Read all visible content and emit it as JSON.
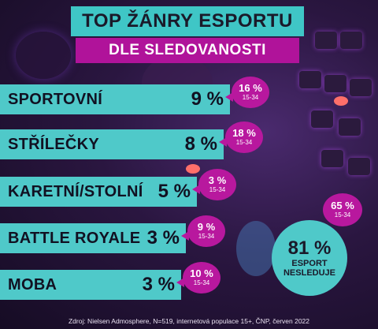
{
  "header": {
    "title": "TOP ŽÁNRY ESPORTU",
    "subtitle": "DLE SLEDOVANOSTI"
  },
  "chart_data": {
    "type": "bar",
    "title": "TOP ŽÁNRY ESPORTU",
    "subtitle": "DLE SLEDOVANOSTI",
    "categories": [
      "SPORTOVNÍ",
      "STŘÍLEČKY",
      "KARETNÍ/STOLNÍ",
      "BATTLE ROYALE",
      "MOBA"
    ],
    "series": [
      {
        "values": [
          9,
          8,
          5,
          3,
          3
        ]
      },
      {
        "name": "15-34",
        "values": [
          16,
          18,
          3,
          9,
          10
        ]
      }
    ],
    "value_labels": [
      "9 %",
      "8 %",
      "5 %",
      "3 %",
      "3 %"
    ],
    "age_labels": [
      "16 %",
      "18 %",
      "3 %",
      "9 %",
      "10 %"
    ],
    "age_group": "15-34",
    "orientation": "horizontal",
    "grid": false
  },
  "summary": {
    "pct": "81 %",
    "label_line1": "ESPORT",
    "label_line2": "NESLEDUJE",
    "value": 81,
    "youth_pct": "65 %",
    "youth_age": "15-34",
    "youth_value": 65
  },
  "source": "Zdroj: Nielsen Admosphere, N=519, internetová populace 15+, ČNP, červen 2022",
  "colors": {
    "teal": "#4fc9c9",
    "magenta": "#b8189e",
    "dark": "#1a1a2a"
  }
}
